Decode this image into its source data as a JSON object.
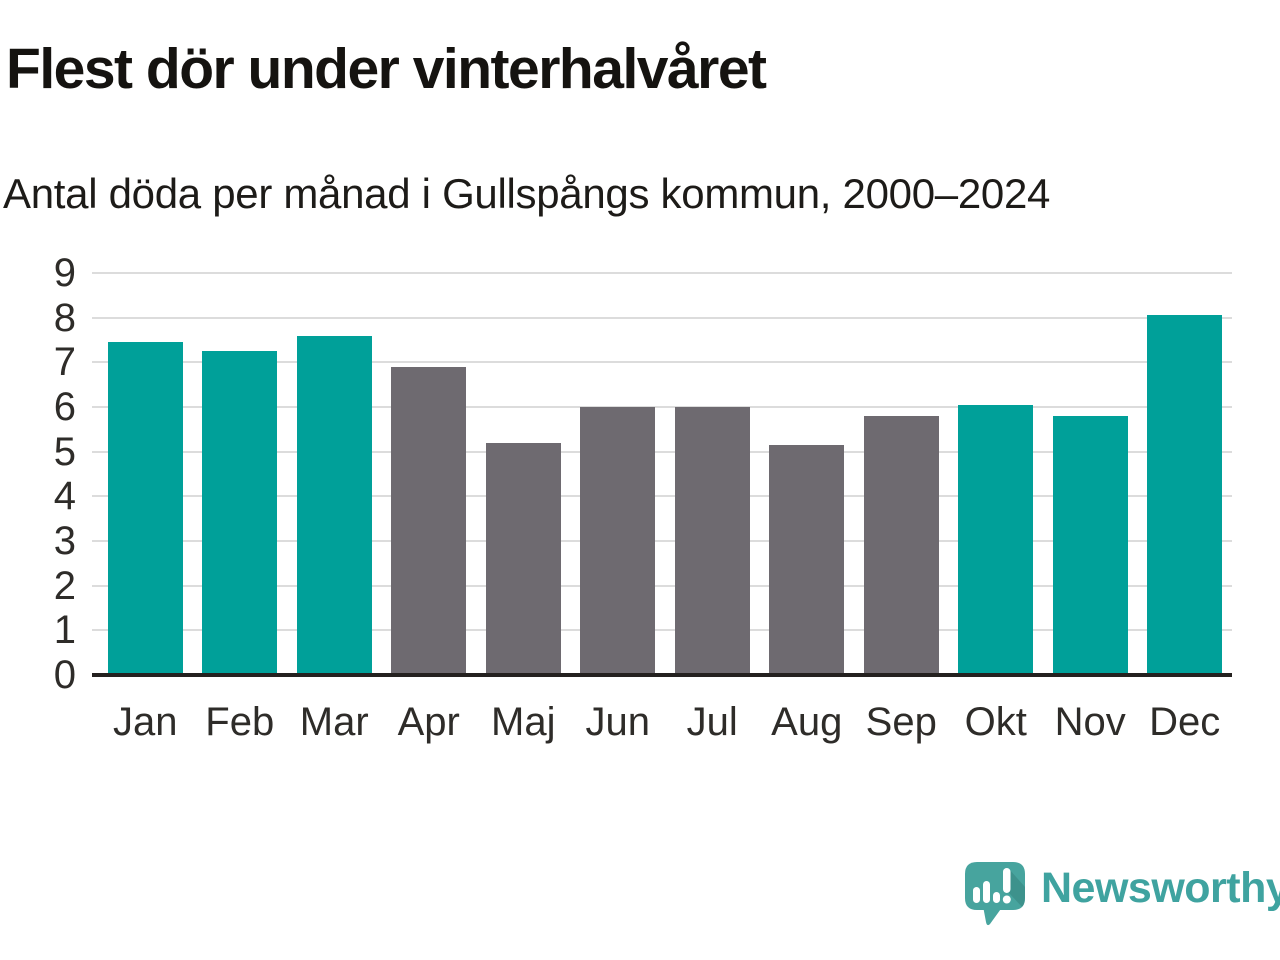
{
  "header": {
    "title": "Flest dör under vinterhalvåret",
    "subtitle": "Antal döda per månad i Gullspångs kommun, 2000–2024"
  },
  "chart_data": {
    "type": "bar",
    "title": "Flest dör under vinterhalvåret",
    "subtitle": "Antal döda per månad i Gullspångs kommun, 2000–2024",
    "categories": [
      "Jan",
      "Feb",
      "Mar",
      "Apr",
      "Maj",
      "Jun",
      "Jul",
      "Aug",
      "Sep",
      "Okt",
      "Nov",
      "Dec"
    ],
    "values": [
      7.45,
      7.25,
      7.6,
      6.9,
      5.2,
      6.0,
      6.0,
      5.15,
      5.8,
      6.05,
      5.8,
      8.05
    ],
    "bar_color_keys": [
      "winter",
      "winter",
      "winter",
      "summer",
      "summer",
      "summer",
      "summer",
      "summer",
      "summer",
      "winter",
      "winter",
      "winter"
    ],
    "colors": {
      "winter": "#00a099",
      "summer": "#6e6a70",
      "gridline": "#dcdcdc",
      "axis": "#24211f",
      "tick_label": "#2e2c29",
      "title": "#151310"
    },
    "xlabel": "",
    "ylabel": "",
    "ylim": [
      0,
      9
    ],
    "yticks": [
      0,
      1,
      2,
      3,
      4,
      5,
      6,
      7,
      8,
      9
    ],
    "grid": "horizontal",
    "legend": "none"
  },
  "branding": {
    "logo_text": "Newsworthy",
    "logo_text_color": "#3fa3a0",
    "logo_icon": "newsworthy-speech-bubble-bar-chart-icon",
    "logo_icon_color": "#47a49e"
  }
}
